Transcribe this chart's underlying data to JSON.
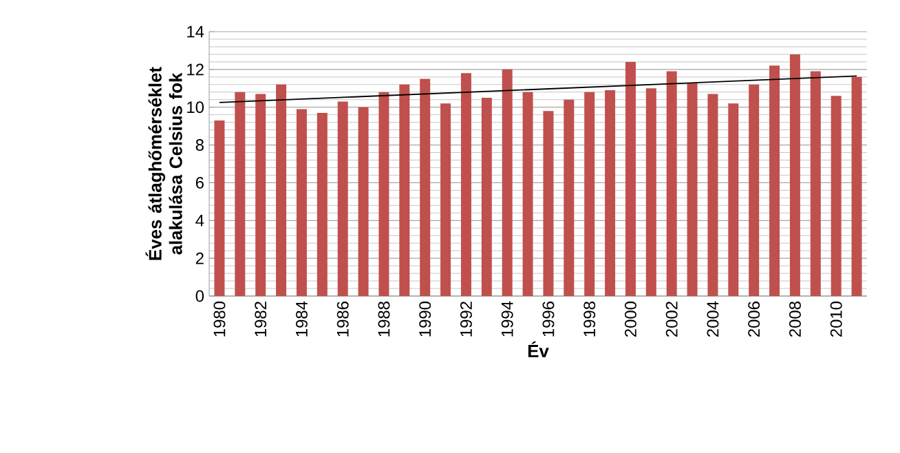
{
  "chart_data": {
    "type": "bar",
    "xlabel": "Év",
    "ylabel": "Éves átlaghőmérséklet alakulása Celsius fok",
    "categories": [
      "1980",
      null,
      "1982",
      null,
      "1984",
      null,
      "1986",
      null,
      "1988",
      null,
      "1990",
      null,
      "1992",
      null,
      "1994",
      null,
      "1996",
      null,
      "1998",
      null,
      "2000",
      null,
      "2002",
      null,
      "2004",
      null,
      "2006",
      null,
      "2008",
      null,
      "2010",
      null
    ],
    "series": [
      {
        "color": "#c0504d",
        "values": [
          9.3,
          10.8,
          10.7,
          11.2,
          9.9,
          9.7,
          10.3,
          10.0,
          10.8,
          11.2,
          11.5,
          10.2,
          11.8,
          10.5,
          12.0,
          10.8,
          9.8,
          10.4,
          10.8,
          10.9,
          12.4,
          11.0,
          11.9,
          11.3,
          10.7,
          10.2,
          11.2,
          12.2,
          12.8,
          11.9,
          10.6,
          11.6
        ]
      },
      {
        "type": "line",
        "color": "#000000",
        "values": [
          10.25,
          null,
          null,
          null,
          null,
          null,
          null,
          null,
          null,
          null,
          null,
          null,
          null,
          null,
          null,
          null,
          null,
          null,
          null,
          null,
          null,
          null,
          null,
          null,
          null,
          null,
          null,
          null,
          null,
          null,
          null,
          11.65
        ]
      }
    ],
    "ylim": [
      0,
      14
    ],
    "yticks": [
      0,
      2,
      4,
      6,
      8,
      10,
      12,
      14
    ],
    "grid": "y"
  }
}
